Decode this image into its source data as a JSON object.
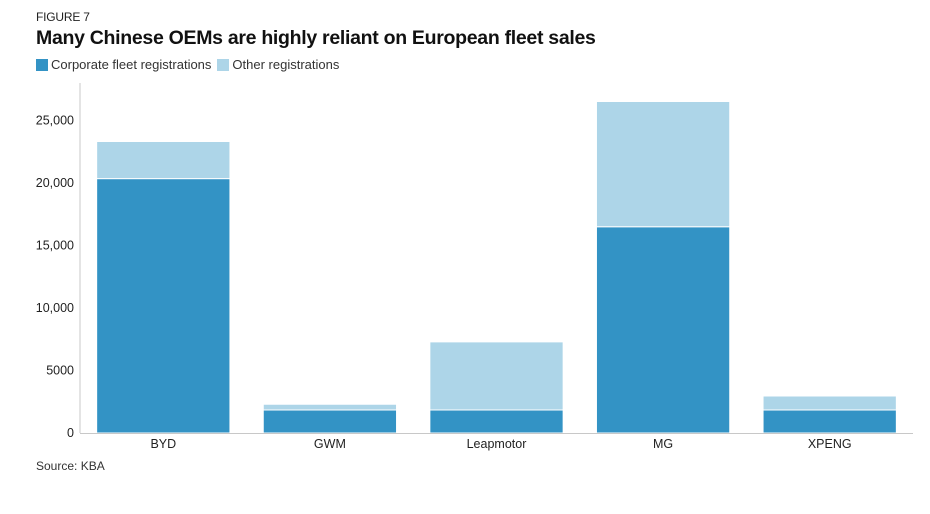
{
  "figure_label": "FIGURE 7",
  "source": "Source: KBA",
  "chart_data": {
    "type": "bar",
    "stacked": true,
    "title": "Many Chinese OEMs are highly reliant on European fleet sales",
    "xlabel": "",
    "ylabel": "",
    "categories": [
      "BYD",
      "GWM",
      "Leapmotor",
      "MG",
      "XPENG"
    ],
    "series": [
      {
        "name": "Corporate fleet registrations",
        "color": "#3393c5",
        "values": [
          20350,
          1840,
          1840,
          16500,
          1840
        ]
      },
      {
        "name": "Other registrations",
        "color": "#add5e8",
        "values": [
          2970,
          460,
          5450,
          10020,
          1120
        ]
      }
    ],
    "ylim": [
      0,
      28000
    ],
    "yticks": [
      0,
      5000,
      10000,
      15000,
      20000,
      25000
    ],
    "ytick_labels": [
      "0",
      "5000",
      "10,000",
      "15,000",
      "20,000",
      "25,000"
    ],
    "grid": false,
    "legend_position": "top-left"
  }
}
